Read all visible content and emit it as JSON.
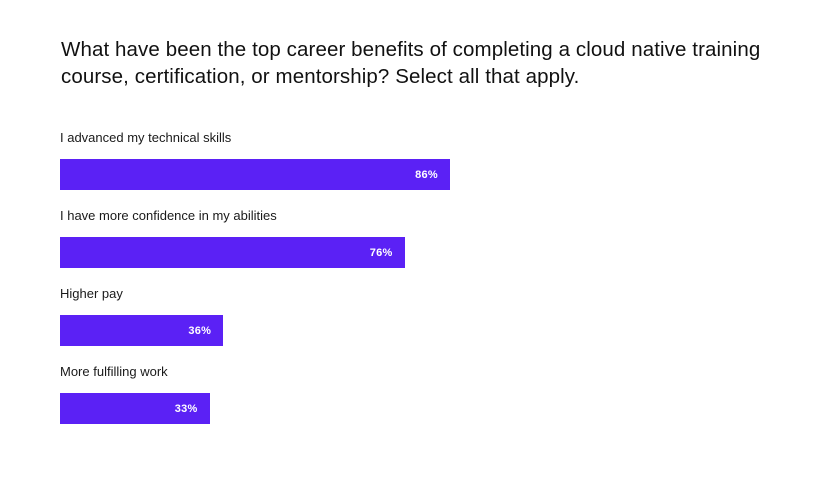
{
  "chart_data": {
    "type": "bar",
    "orientation": "horizontal",
    "title": "What have been the top career benefits of completing a cloud native training course, certification, or mentorship? Select all that apply.",
    "categories": [
      "I advanced my technical skills",
      "I have more confidence in my abilities",
      "Higher pay",
      "More fulfilling work"
    ],
    "values": [
      86,
      76,
      36,
      33
    ],
    "value_labels": [
      "86%",
      "76%",
      "36%",
      "33%"
    ],
    "unit": "%",
    "xlim": [
      0,
      100
    ],
    "grid": false,
    "legend": "none",
    "bar_color": "#5b21f5"
  }
}
